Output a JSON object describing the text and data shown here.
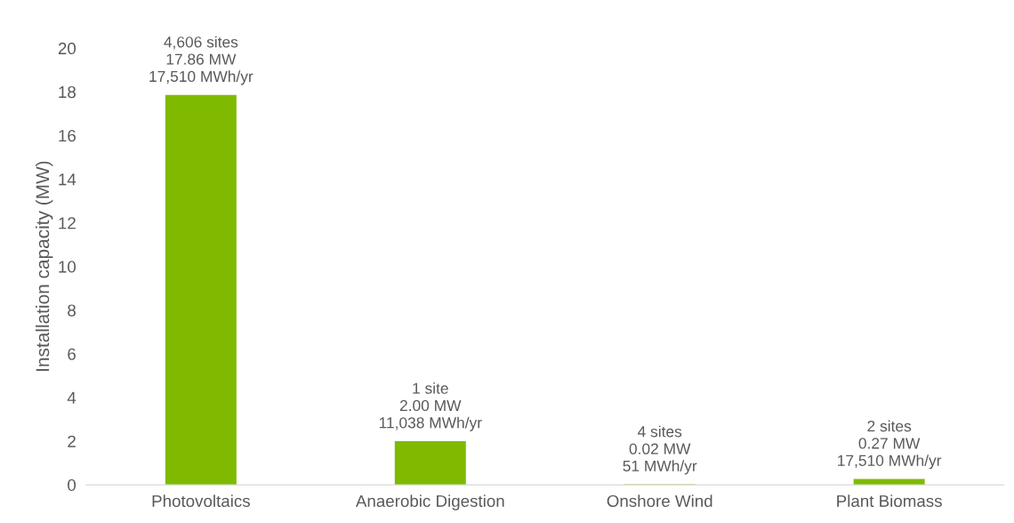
{
  "chart_data": {
    "type": "bar",
    "ylabel": "Installation capacity (MW)",
    "categories": [
      "Photovoltaics",
      "Anaerobic Digestion",
      "Onshore Wind",
      "Plant Biomass"
    ],
    "values": [
      17.86,
      2.0,
      0.02,
      0.27
    ],
    "value_labels": [
      "4,606 sites\n17.86 MW\n17,510 MWh/yr",
      "1 site\n2.00 MW\n11,038 MWh/yr",
      "4 sites\n0.02 MW\n51 MWh/yr",
      "2 sites\n0.27 MW\n17,510 MWh/yr"
    ],
    "color": "#7fba00",
    "ylim": [
      0,
      20
    ],
    "yticks": [
      0,
      2,
      4,
      6,
      8,
      10,
      12,
      14,
      16,
      18,
      20
    ],
    "grid": false,
    "legend": false
  }
}
